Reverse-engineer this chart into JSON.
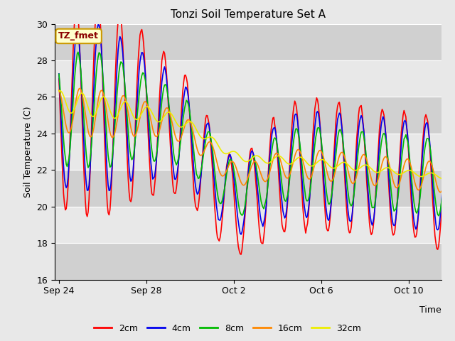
{
  "title": "Tonzi Soil Temperature Set A",
  "xlabel": "Time",
  "ylabel": "Soil Temperature (C)",
  "ylim": [
    16,
    30
  ],
  "yticks": [
    16,
    18,
    20,
    22,
    24,
    26,
    28,
    30
  ],
  "fig_bg_color": "#e8e8e8",
  "plot_bg_color": "#e8e8e8",
  "band_colors": [
    "#d0d0d0",
    "#e8e8e8"
  ],
  "annotation_text": "TZ_fmet",
  "annotation_color": "#8b0000",
  "annotation_bg": "#ffffcc",
  "annotation_border": "#cc9900",
  "series_colors": {
    "2cm": "#ff0000",
    "4cm": "#0000ee",
    "8cm": "#00bb00",
    "16cm": "#ff8800",
    "32cm": "#eeee00"
  },
  "legend_labels": [
    "2cm",
    "4cm",
    "8cm",
    "16cm",
    "32cm"
  ],
  "xtick_labels": [
    "Sep 24",
    "Sep 28",
    "Oct 2",
    "Oct 6",
    "Oct 10"
  ],
  "xtick_positions": [
    0,
    4,
    8,
    12,
    16
  ],
  "line_width": 1.2
}
